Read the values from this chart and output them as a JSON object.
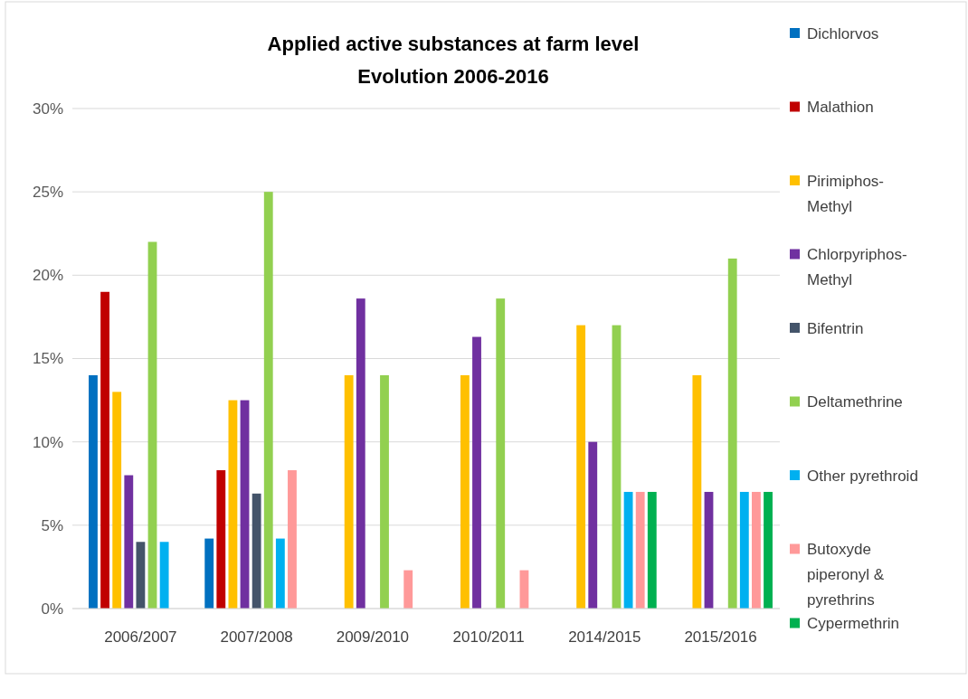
{
  "chart_data": {
    "type": "bar",
    "title": "Applied active substances at farm level",
    "subtitle": "Evolution 2006-2016",
    "categories": [
      "2006/2007",
      "2007/2008",
      "2009/2010",
      "2010/2011",
      "2014/2015",
      "2015/2016"
    ],
    "series": [
      {
        "name": "Dichlorvos",
        "color": "#0070c0",
        "values": [
          14,
          4.2,
          null,
          null,
          null,
          null
        ]
      },
      {
        "name": "Malathion",
        "color": "#c00000",
        "values": [
          19,
          8.3,
          null,
          null,
          null,
          null
        ]
      },
      {
        "name": "Pirimiphos-Methyl",
        "color": "#ffc000",
        "values": [
          13,
          12.5,
          14,
          14,
          17,
          14
        ]
      },
      {
        "name": "Chlorpyriphos-Methyl",
        "color": "#7030a0",
        "values": [
          8,
          12.5,
          18.6,
          16.3,
          10,
          7
        ]
      },
      {
        "name": "Bifentrin",
        "color": "#44546a",
        "values": [
          4,
          6.9,
          null,
          null,
          null,
          null
        ]
      },
      {
        "name": "Deltamethrine",
        "color": "#92d050",
        "values": [
          22,
          25,
          14,
          18.6,
          17,
          21
        ]
      },
      {
        "name": "Other pyrethroid",
        "color": "#00b0f0",
        "values": [
          4,
          4.2,
          null,
          null,
          7,
          7
        ]
      },
      {
        "name": "Butoxyde piperonyl & pyrethrins",
        "color": "#ff9999",
        "values": [
          null,
          8.3,
          2.3,
          2.3,
          7,
          7
        ]
      },
      {
        "name": "Cypermethrin",
        "color": "#00b050",
        "values": [
          null,
          null,
          null,
          null,
          7,
          7
        ]
      }
    ],
    "ylim": [
      0,
      30
    ],
    "yticks": [
      {
        "value": 0,
        "label": "0%"
      },
      {
        "value": 5,
        "label": "5%"
      },
      {
        "value": 10,
        "label": "10%"
      },
      {
        "value": 15,
        "label": "15%"
      },
      {
        "value": 20,
        "label": "20%"
      },
      {
        "value": 25,
        "label": "25%"
      },
      {
        "value": 30,
        "label": "30%"
      }
    ],
    "grid": "y",
    "legend": "right"
  }
}
